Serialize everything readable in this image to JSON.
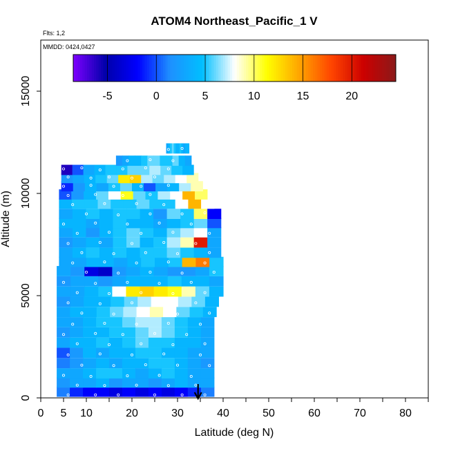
{
  "chart_data": {
    "type": "heatmap",
    "title": "ATOM4 Northeast_Pacific_1 V",
    "flights_note": "Flts: 1,2",
    "dates_note": "MMDD: 0424,0427",
    "xlabel": "Latitude (deg N)",
    "ylabel": "Altitude (m)",
    "xlim": [
      0,
      85
    ],
    "ylim": [
      0,
      17500
    ],
    "x_ticks": [
      0,
      5,
      10,
      20,
      30,
      40,
      50,
      60,
      70,
      80
    ],
    "y_ticks": [
      0,
      5000,
      10000,
      15000
    ],
    "colorbar": {
      "range": [
        -8.5,
        24.5
      ],
      "ticks": [
        -5,
        0,
        5,
        10,
        15,
        20
      ],
      "tick_labels": [
        "-5",
        "0",
        "5",
        "10",
        "15",
        "20"
      ],
      "colors": [
        "#7f00ff",
        "#0000aa",
        "#0000ff",
        "#1e90ff",
        "#00bfff",
        "#ffffff",
        "#ffff00",
        "#ffa500",
        "#ff4500",
        "#cc0000",
        "#8b1a1a"
      ]
    },
    "arrow_latitude": 34.5,
    "layers": [
      {
        "alt": 300,
        "lat": [
          3.5,
          38.0
        ],
        "values": [
          1,
          -1,
          -2,
          -2,
          -3,
          -2,
          -3,
          -2,
          -3,
          -2,
          -1,
          1
        ]
      },
      {
        "alt": 750,
        "lat": [
          3.5,
          38.0
        ],
        "values": [
          2,
          3,
          3,
          4,
          2,
          3,
          3,
          2,
          3,
          4,
          3,
          3
        ]
      },
      {
        "alt": 1200,
        "lat": [
          3.5,
          38.0
        ],
        "values": [
          3,
          3,
          4,
          5,
          5,
          4,
          3,
          4,
          5,
          4,
          3,
          3
        ]
      },
      {
        "alt": 1700,
        "lat": [
          3.5,
          38.0
        ],
        "values": [
          1,
          2,
          3,
          4,
          3,
          4,
          4,
          5,
          5,
          4,
          3,
          2
        ]
      },
      {
        "alt": 2200,
        "lat": [
          3.5,
          38.0
        ],
        "values": [
          0,
          2,
          4,
          3,
          4,
          4,
          5,
          5,
          4,
          4,
          3,
          3
        ]
      },
      {
        "alt": 2700,
        "lat": [
          3.5,
          38.0
        ],
        "values": [
          3,
          4,
          4,
          5,
          4,
          5,
          6,
          5,
          5,
          4,
          4,
          3
        ]
      },
      {
        "alt": 3200,
        "lat": [
          3.5,
          38.0
        ],
        "values": [
          2,
          3,
          4,
          4,
          5,
          5,
          6,
          7,
          6,
          5,
          4,
          3
        ]
      },
      {
        "alt": 3700,
        "lat": [
          3.5,
          38.0
        ],
        "values": [
          3,
          3,
          4,
          5,
          5,
          6,
          7,
          7,
          6,
          5,
          4,
          3
        ]
      },
      {
        "alt": 4200,
        "lat": [
          3.5,
          38.5
        ],
        "values": [
          3,
          4,
          4,
          5,
          6,
          7,
          8,
          9,
          8,
          6,
          5,
          4
        ]
      },
      {
        "alt": 4700,
        "lat": [
          3.5,
          39.0
        ],
        "values": [
          2,
          3,
          4,
          4,
          5,
          6,
          7,
          8,
          8,
          7,
          6,
          4
        ]
      },
      {
        "alt": 5200,
        "lat": [
          3.5,
          40.0
        ],
        "values": [
          3,
          3,
          4,
          5,
          8,
          12,
          13,
          12,
          11,
          9,
          6,
          4
        ]
      },
      {
        "alt": 5700,
        "lat": [
          3.5,
          40.0
        ],
        "values": [
          2,
          3,
          3,
          2,
          3,
          4,
          4,
          4,
          5,
          4,
          4,
          3
        ]
      },
      {
        "alt": 6200,
        "lat": [
          3.5,
          40.0
        ],
        "values": [
          3,
          2,
          -3,
          -4,
          2,
          3,
          4,
          3,
          2,
          2,
          3,
          5
        ]
      },
      {
        "alt": 6650,
        "lat": [
          4.0,
          40.0
        ],
        "values": [
          3,
          3,
          4,
          4,
          3,
          4,
          5,
          4,
          5,
          14,
          16,
          5
        ]
      },
      {
        "alt": 7100,
        "lat": [
          4.0,
          39.5
        ],
        "values": [
          3,
          4,
          5,
          4,
          5,
          4,
          5,
          5,
          6,
          5,
          4,
          3
        ]
      },
      {
        "alt": 7600,
        "lat": [
          4.0,
          39.5
        ],
        "values": [
          2,
          3,
          4,
          3,
          5,
          6,
          4,
          5,
          7,
          9,
          20,
          3
        ]
      },
      {
        "alt": 8100,
        "lat": [
          4.0,
          39.5
        ],
        "values": [
          3,
          4,
          2,
          4,
          5,
          6,
          5,
          4,
          6,
          7,
          8,
          3
        ]
      },
      {
        "alt": 8550,
        "lat": [
          4.0,
          39.5
        ],
        "values": [
          4,
          4,
          3,
          4,
          5,
          4,
          4,
          3,
          4,
          5,
          6,
          0
        ]
      },
      {
        "alt": 9000,
        "lat": [
          4.0,
          39.5
        ],
        "values": [
          3,
          4,
          5,
          4,
          5,
          5,
          4,
          2,
          6,
          5,
          10,
          -2
        ]
      },
      {
        "alt": 9500,
        "lat": [
          4.0,
          38.0
        ],
        "values": [
          4,
          5,
          5,
          6,
          5,
          5,
          6,
          5,
          5,
          8,
          14,
          8
        ]
      },
      {
        "alt": 9950,
        "lat": [
          4.0,
          36.5
        ],
        "values": [
          0,
          2,
          4,
          6,
          8,
          11,
          6,
          5,
          7,
          8,
          14,
          10
        ]
      },
      {
        "alt": 10350,
        "lat": [
          4.5,
          35.5
        ],
        "values": [
          -1,
          2,
          4,
          3,
          5,
          6,
          4,
          0,
          3,
          4,
          7,
          9
        ]
      },
      {
        "alt": 10750,
        "lat": [
          4.5,
          34.5
        ],
        "values": [
          2,
          3,
          4,
          5,
          6,
          12,
          13,
          7,
          6,
          7,
          8,
          9
        ]
      },
      {
        "alt": 11150,
        "lat": [
          4.5,
          33.5
        ],
        "values": [
          -6,
          0,
          3,
          4,
          5,
          5,
          6,
          6,
          7,
          6,
          5,
          4
        ]
      },
      {
        "alt": 11600,
        "lat": [
          16.5,
          33.0
        ],
        "values": [
          2,
          3,
          4,
          4,
          5,
          6,
          6,
          5,
          5,
          6,
          4,
          3
        ]
      },
      {
        "alt": 12200,
        "lat": [
          27.5,
          32.5
        ],
        "values": [
          3,
          4,
          5,
          6,
          5,
          4,
          4,
          5,
          4,
          3,
          4,
          4
        ]
      }
    ],
    "sample_points": [
      [
        6,
        150
      ],
      [
        12,
        150
      ],
      [
        17,
        150
      ],
      [
        25,
        150
      ],
      [
        31,
        150
      ],
      [
        36,
        150
      ],
      [
        8,
        620
      ],
      [
        14,
        600
      ],
      [
        21,
        620
      ],
      [
        28,
        600
      ],
      [
        34,
        620
      ],
      [
        5,
        1100
      ],
      [
        11,
        1050
      ],
      [
        19,
        1080
      ],
      [
        26,
        1100
      ],
      [
        33,
        1050
      ],
      [
        9,
        1600
      ],
      [
        16,
        1580
      ],
      [
        23,
        1620
      ],
      [
        30,
        1600
      ],
      [
        37,
        1580
      ],
      [
        6,
        2100
      ],
      [
        13,
        2150
      ],
      [
        20,
        2100
      ],
      [
        27,
        2150
      ],
      [
        35,
        2100
      ],
      [
        8,
        2650
      ],
      [
        15,
        2600
      ],
      [
        22,
        2650
      ],
      [
        29,
        2600
      ],
      [
        36,
        2650
      ],
      [
        5,
        3100
      ],
      [
        12,
        3150
      ],
      [
        18,
        3100
      ],
      [
        25,
        3150
      ],
      [
        32,
        3100
      ],
      [
        7,
        3600
      ],
      [
        14,
        3650
      ],
      [
        21,
        3600
      ],
      [
        28,
        3650
      ],
      [
        35,
        3600
      ],
      [
        9,
        4150
      ],
      [
        16,
        4100
      ],
      [
        23,
        4150
      ],
      [
        30,
        4100
      ],
      [
        37,
        4150
      ],
      [
        6,
        4650
      ],
      [
        13,
        4600
      ],
      [
        20,
        4650
      ],
      [
        27,
        4600
      ],
      [
        34,
        4650
      ],
      [
        8,
        5150
      ],
      [
        15,
        5100
      ],
      [
        22,
        5150
      ],
      [
        29,
        5100
      ],
      [
        36,
        5150
      ],
      [
        5,
        5650
      ],
      [
        12,
        5600
      ],
      [
        19,
        5650
      ],
      [
        26,
        5600
      ],
      [
        33,
        5650
      ],
      [
        10,
        6150
      ],
      [
        17,
        6100
      ],
      [
        24,
        6150
      ],
      [
        31,
        6100
      ],
      [
        38,
        6150
      ],
      [
        7,
        6600
      ],
      [
        14,
        6650
      ],
      [
        21,
        6600
      ],
      [
        28,
        6650
      ],
      [
        36,
        6600
      ],
      [
        9,
        7100
      ],
      [
        16,
        7050
      ],
      [
        23,
        7100
      ],
      [
        30,
        7050
      ],
      [
        37,
        7100
      ],
      [
        6,
        7550
      ],
      [
        13,
        7600
      ],
      [
        20,
        7550
      ],
      [
        27,
        7600
      ],
      [
        34,
        7550
      ],
      [
        8,
        8050
      ],
      [
        15,
        8100
      ],
      [
        22,
        8050
      ],
      [
        29,
        8100
      ],
      [
        37,
        8050
      ],
      [
        5,
        8500
      ],
      [
        12,
        8550
      ],
      [
        19,
        8500
      ],
      [
        26,
        8550
      ],
      [
        33,
        8500
      ],
      [
        10,
        9000
      ],
      [
        17,
        8950
      ],
      [
        24,
        9000
      ],
      [
        31,
        9000
      ],
      [
        36,
        9050
      ],
      [
        7,
        9450
      ],
      [
        14,
        9500
      ],
      [
        21,
        9500
      ],
      [
        27,
        9450
      ],
      [
        32,
        9500
      ],
      [
        6,
        9900
      ],
      [
        12,
        9950
      ],
      [
        18,
        9900
      ],
      [
        24,
        9950
      ],
      [
        30,
        9950
      ],
      [
        5,
        10350
      ],
      [
        11,
        10400
      ],
      [
        16,
        10350
      ],
      [
        22,
        10350
      ],
      [
        28,
        10400
      ],
      [
        6,
        10800
      ],
      [
        11,
        10750
      ],
      [
        15,
        10800
      ],
      [
        20,
        10750
      ],
      [
        25,
        10800
      ],
      [
        30,
        10750
      ],
      [
        5,
        11200
      ],
      [
        9,
        11250
      ],
      [
        13,
        11150
      ],
      [
        18,
        11200
      ],
      [
        23,
        11250
      ],
      [
        28,
        11200
      ],
      [
        19,
        11600
      ],
      [
        24,
        11650
      ],
      [
        29,
        11600
      ],
      [
        28,
        12150
      ],
      [
        31,
        12200
      ]
    ]
  }
}
